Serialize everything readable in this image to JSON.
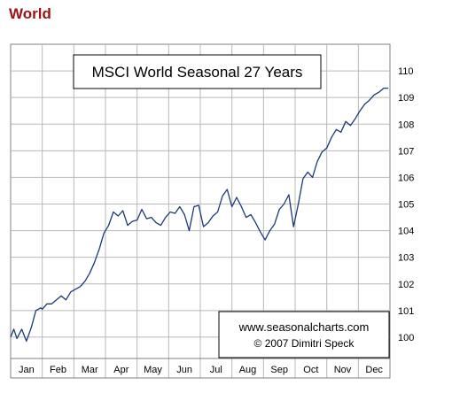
{
  "page": {
    "heading": "World"
  },
  "chart_data": {
    "type": "line",
    "title": "MSCI World Seasonal 27 Years",
    "credit_url": "www.seasonalcharts.com",
    "credit_author": "© 2007  Dimitri Speck",
    "xlabel": "",
    "ylabel": "",
    "x_categories": [
      "Jan",
      "Feb",
      "Mar",
      "Apr",
      "May",
      "Jun",
      "Jul",
      "Aug",
      "Sep",
      "Oct",
      "Nov",
      "Dec"
    ],
    "y_ticks": [
      100,
      101,
      102,
      103,
      104,
      105,
      106,
      107,
      108,
      109,
      110
    ],
    "ylim": [
      99.2,
      111.0
    ],
    "grid": true,
    "line_color": "#1a3a7a",
    "x_unit": "month (0 = start of Jan, 12 = end of Dec)",
    "series": [
      {
        "name": "",
        "x": [
          0.0,
          0.1,
          0.2,
          0.35,
          0.5,
          0.65,
          0.8,
          0.95,
          1.0,
          1.15,
          1.3,
          1.45,
          1.6,
          1.75,
          1.9,
          2.05,
          2.2,
          2.35,
          2.5,
          2.65,
          2.8,
          2.95,
          3.1,
          3.25,
          3.4,
          3.55,
          3.7,
          3.85,
          4.0,
          4.15,
          4.3,
          4.45,
          4.6,
          4.75,
          4.9,
          5.05,
          5.2,
          5.35,
          5.5,
          5.65,
          5.8,
          5.95,
          6.1,
          6.25,
          6.4,
          6.55,
          6.7,
          6.85,
          7.0,
          7.15,
          7.3,
          7.45,
          7.6,
          7.75,
          7.9,
          8.05,
          8.2,
          8.35,
          8.5,
          8.65,
          8.8,
          8.95,
          9.1,
          9.25,
          9.4,
          9.55,
          9.7,
          9.85,
          10.0,
          10.15,
          10.3,
          10.45,
          10.6,
          10.75,
          10.9,
          11.05,
          11.2,
          11.35,
          11.5,
          11.65,
          11.8,
          11.95
        ],
        "values": [
          100.0,
          100.3,
          99.95,
          100.3,
          99.85,
          100.35,
          101.0,
          101.1,
          101.05,
          101.25,
          101.25,
          101.4,
          101.55,
          101.4,
          101.7,
          101.8,
          101.9,
          102.1,
          102.4,
          102.8,
          103.3,
          103.9,
          104.2,
          104.7,
          104.55,
          104.75,
          104.2,
          104.35,
          104.4,
          104.8,
          104.45,
          104.5,
          104.3,
          104.2,
          104.5,
          104.7,
          104.65,
          104.9,
          104.6,
          104.0,
          104.9,
          104.95,
          104.15,
          104.3,
          104.55,
          104.7,
          105.3,
          105.55,
          104.9,
          105.25,
          104.9,
          104.5,
          104.6,
          104.3,
          103.95,
          103.65,
          104.0,
          104.25,
          104.8,
          105.0,
          105.35,
          104.15,
          105.0,
          105.95,
          106.2,
          106.0,
          106.6,
          106.95,
          107.1,
          107.5,
          107.8,
          107.7,
          108.1,
          107.95,
          108.2,
          108.5,
          108.75,
          108.9,
          109.1,
          109.2,
          109.35,
          109.35
        ]
      }
    ]
  }
}
